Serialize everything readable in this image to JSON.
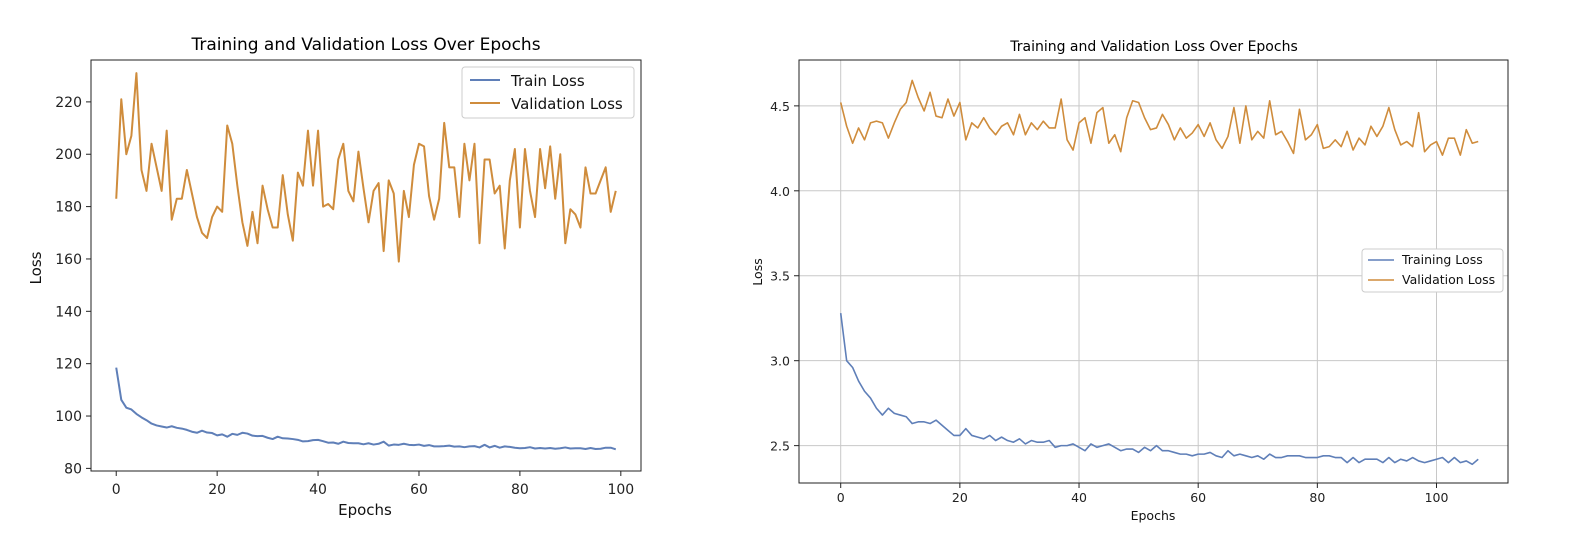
{
  "chart_data": [
    {
      "type": "line",
      "title": "Training and Validation Loss Over Epochs",
      "xlabel": "Epochs",
      "ylabel": "Loss",
      "xlim": [
        -5,
        104
      ],
      "ylim": [
        79,
        236
      ],
      "xticks": [
        0,
        20,
        40,
        60,
        80,
        100
      ],
      "yticks": [
        80,
        100,
        120,
        140,
        160,
        180,
        200,
        220
      ],
      "grid": false,
      "legend_position": "top-right",
      "series": [
        {
          "name": "Train Loss",
          "color": "#5f7fb8",
          "x": [
            0,
            1,
            2,
            3,
            4,
            5,
            6,
            7,
            8,
            9,
            10,
            11,
            12,
            13,
            14,
            15,
            16,
            17,
            18,
            19,
            20,
            21,
            22,
            23,
            24,
            25,
            26,
            27,
            28,
            29,
            30,
            31,
            32,
            33,
            34,
            35,
            36,
            37,
            38,
            39,
            40,
            41,
            42,
            43,
            44,
            45,
            46,
            47,
            48,
            49,
            50,
            51,
            52,
            53,
            54,
            55,
            56,
            57,
            58,
            59,
            60,
            61,
            62,
            63,
            64,
            65,
            66,
            67,
            68,
            69,
            70,
            71,
            72,
            73,
            74,
            75,
            76,
            77,
            78,
            79,
            80,
            81,
            82,
            83,
            84,
            85,
            86,
            87,
            88,
            89,
            90,
            91,
            92,
            93,
            94,
            95,
            96,
            97,
            98,
            99
          ],
          "y": [
            118.5,
            106.2,
            103.2,
            102.5,
            100.8,
            99.5,
            98.4,
            97.1,
            96.4,
            96.0,
            95.6,
            96.1,
            95.5,
            95.2,
            94.7,
            94.0,
            93.6,
            94.4,
            93.7,
            93.5,
            92.6,
            93.0,
            92.1,
            93.2,
            92.8,
            93.6,
            93.3,
            92.5,
            92.3,
            92.4,
            91.7,
            91.2,
            92.1,
            91.5,
            91.4,
            91.2,
            90.9,
            90.3,
            90.4,
            90.8,
            90.9,
            90.4,
            89.8,
            89.9,
            89.4,
            90.2,
            89.7,
            89.6,
            89.6,
            89.2,
            89.6,
            89.1,
            89.4,
            90.2,
            88.7,
            89.1,
            89.0,
            89.4,
            89.0,
            88.9,
            89.1,
            88.6,
            88.9,
            88.4,
            88.4,
            88.5,
            88.7,
            88.3,
            88.4,
            88.1,
            88.4,
            88.5,
            88.0,
            89.0,
            88.0,
            88.6,
            87.9,
            88.4,
            88.2,
            87.9,
            87.7,
            87.8,
            88.1,
            87.6,
            87.8,
            87.6,
            87.8,
            87.5,
            87.7,
            88.0,
            87.6,
            87.7,
            87.7,
            87.4,
            87.8,
            87.4,
            87.5,
            87.9,
            87.9,
            87.3
          ]
        },
        {
          "name": "Validation Loss",
          "color": "#cf8c3c",
          "x": [
            0,
            1,
            2,
            3,
            4,
            5,
            6,
            7,
            8,
            9,
            10,
            11,
            12,
            13,
            14,
            15,
            16,
            17,
            18,
            19,
            20,
            21,
            22,
            23,
            24,
            25,
            26,
            27,
            28,
            29,
            30,
            31,
            32,
            33,
            34,
            35,
            36,
            37,
            38,
            39,
            40,
            41,
            42,
            43,
            44,
            45,
            46,
            47,
            48,
            49,
            50,
            51,
            52,
            53,
            54,
            55,
            56,
            57,
            58,
            59,
            60,
            61,
            62,
            63,
            64,
            65,
            66,
            67,
            68,
            69,
            70,
            71,
            72,
            73,
            74,
            75,
            76,
            77,
            78,
            79,
            80,
            81,
            82,
            83,
            84,
            85,
            86,
            87,
            88,
            89,
            90,
            91,
            92,
            93,
            94,
            95,
            96,
            97,
            98,
            99
          ],
          "y": [
            183,
            221,
            200,
            207,
            231,
            194,
            186,
            204,
            195,
            186,
            209,
            175,
            183,
            183,
            194,
            185,
            176,
            170,
            168,
            176,
            180,
            178,
            211,
            204,
            188,
            174,
            165,
            178,
            166,
            188,
            179,
            172,
            172,
            192,
            177,
            167,
            193,
            188,
            209,
            188,
            209,
            180,
            181,
            179,
            198,
            204,
            186,
            182,
            201,
            187,
            174,
            186,
            189,
            163,
            190,
            185,
            159,
            186,
            176,
            196,
            204,
            203,
            184,
            175,
            183,
            212,
            195,
            195,
            176,
            204,
            190,
            204,
            166,
            198,
            198,
            185,
            188,
            164,
            190,
            202,
            172,
            202,
            186,
            176,
            202,
            187,
            203,
            183,
            200,
            166,
            179,
            177,
            172,
            195,
            185,
            185,
            190,
            195,
            178,
            186
          ]
        }
      ]
    },
    {
      "type": "line",
      "title": "Training and Validation Loss Over Epochs",
      "xlabel": "Epochs",
      "ylabel": "Loss",
      "xlim": [
        -7,
        112
      ],
      "ylim": [
        2.28,
        4.77
      ],
      "xticks": [
        0,
        20,
        40,
        60,
        80,
        100
      ],
      "yticks": [
        2.5,
        3.0,
        3.5,
        4.0,
        4.5
      ],
      "ytick_labels": [
        "2.5",
        "3.0",
        "3.5",
        "4.0",
        "4.5"
      ],
      "grid": true,
      "legend_position": "center-right",
      "series": [
        {
          "name": "Training Loss",
          "color": "#5f7fb8",
          "x": [
            0,
            1,
            2,
            3,
            4,
            5,
            6,
            7,
            8,
            9,
            10,
            11,
            12,
            13,
            14,
            15,
            16,
            17,
            18,
            19,
            20,
            21,
            22,
            23,
            24,
            25,
            26,
            27,
            28,
            29,
            30,
            31,
            32,
            33,
            34,
            35,
            36,
            37,
            38,
            39,
            40,
            41,
            42,
            43,
            44,
            45,
            46,
            47,
            48,
            49,
            50,
            51,
            52,
            53,
            54,
            55,
            56,
            57,
            58,
            59,
            60,
            61,
            62,
            63,
            64,
            65,
            66,
            67,
            68,
            69,
            70,
            71,
            72,
            73,
            74,
            75,
            76,
            77,
            78,
            79,
            80,
            81,
            82,
            83,
            84,
            85,
            86,
            87,
            88,
            89,
            90,
            91,
            92,
            93,
            94,
            95,
            96,
            97,
            98,
            99,
            100,
            101,
            102,
            103,
            104,
            105,
            106,
            107
          ],
          "y": [
            3.28,
            3.0,
            2.96,
            2.88,
            2.82,
            2.78,
            2.72,
            2.68,
            2.72,
            2.69,
            2.68,
            2.67,
            2.63,
            2.64,
            2.64,
            2.63,
            2.65,
            2.62,
            2.59,
            2.56,
            2.56,
            2.6,
            2.56,
            2.55,
            2.54,
            2.56,
            2.53,
            2.55,
            2.53,
            2.52,
            2.54,
            2.51,
            2.53,
            2.52,
            2.52,
            2.53,
            2.49,
            2.5,
            2.5,
            2.51,
            2.49,
            2.47,
            2.51,
            2.49,
            2.5,
            2.51,
            2.49,
            2.47,
            2.48,
            2.48,
            2.46,
            2.49,
            2.47,
            2.5,
            2.47,
            2.47,
            2.46,
            2.45,
            2.45,
            2.44,
            2.45,
            2.45,
            2.46,
            2.44,
            2.43,
            2.47,
            2.44,
            2.45,
            2.44,
            2.43,
            2.44,
            2.42,
            2.45,
            2.43,
            2.43,
            2.44,
            2.44,
            2.44,
            2.43,
            2.43,
            2.43,
            2.44,
            2.44,
            2.43,
            2.43,
            2.4,
            2.43,
            2.4,
            2.42,
            2.42,
            2.42,
            2.4,
            2.43,
            2.4,
            2.42,
            2.41,
            2.43,
            2.41,
            2.4,
            2.41,
            2.42,
            2.43,
            2.4,
            2.43,
            2.4,
            2.41,
            2.39,
            2.42
          ]
        },
        {
          "name": "Validation Loss",
          "color": "#cf8c3c",
          "x": [
            0,
            1,
            2,
            3,
            4,
            5,
            6,
            7,
            8,
            9,
            10,
            11,
            12,
            13,
            14,
            15,
            16,
            17,
            18,
            19,
            20,
            21,
            22,
            23,
            24,
            25,
            26,
            27,
            28,
            29,
            30,
            31,
            32,
            33,
            34,
            35,
            36,
            37,
            38,
            39,
            40,
            41,
            42,
            43,
            44,
            45,
            46,
            47,
            48,
            49,
            50,
            51,
            52,
            53,
            54,
            55,
            56,
            57,
            58,
            59,
            60,
            61,
            62,
            63,
            64,
            65,
            66,
            67,
            68,
            69,
            70,
            71,
            72,
            73,
            74,
            75,
            76,
            77,
            78,
            79,
            80,
            81,
            82,
            83,
            84,
            85,
            86,
            87,
            88,
            89,
            90,
            91,
            92,
            93,
            94,
            95,
            96,
            97,
            98,
            99,
            100,
            101,
            102,
            103,
            104,
            105,
            106,
            107
          ],
          "y": [
            4.52,
            4.38,
            4.28,
            4.37,
            4.3,
            4.4,
            4.41,
            4.4,
            4.31,
            4.4,
            4.48,
            4.52,
            4.65,
            4.55,
            4.47,
            4.58,
            4.44,
            4.43,
            4.54,
            4.44,
            4.52,
            4.3,
            4.4,
            4.37,
            4.43,
            4.37,
            4.33,
            4.38,
            4.4,
            4.33,
            4.45,
            4.33,
            4.4,
            4.36,
            4.41,
            4.37,
            4.37,
            4.54,
            4.3,
            4.24,
            4.4,
            4.43,
            4.28,
            4.46,
            4.49,
            4.28,
            4.33,
            4.23,
            4.43,
            4.53,
            4.52,
            4.43,
            4.36,
            4.37,
            4.45,
            4.39,
            4.3,
            4.37,
            4.31,
            4.34,
            4.39,
            4.32,
            4.4,
            4.3,
            4.25,
            4.32,
            4.49,
            4.28,
            4.5,
            4.3,
            4.35,
            4.31,
            4.53,
            4.33,
            4.35,
            4.29,
            4.22,
            4.48,
            4.3,
            4.33,
            4.39,
            4.25,
            4.26,
            4.3,
            4.26,
            4.35,
            4.24,
            4.31,
            4.27,
            4.38,
            4.32,
            4.38,
            4.49,
            4.36,
            4.27,
            4.29,
            4.26,
            4.46,
            4.23,
            4.27,
            4.29,
            4.21,
            4.31,
            4.31,
            4.21,
            4.36,
            4.28,
            4.29
          ]
        }
      ]
    }
  ]
}
